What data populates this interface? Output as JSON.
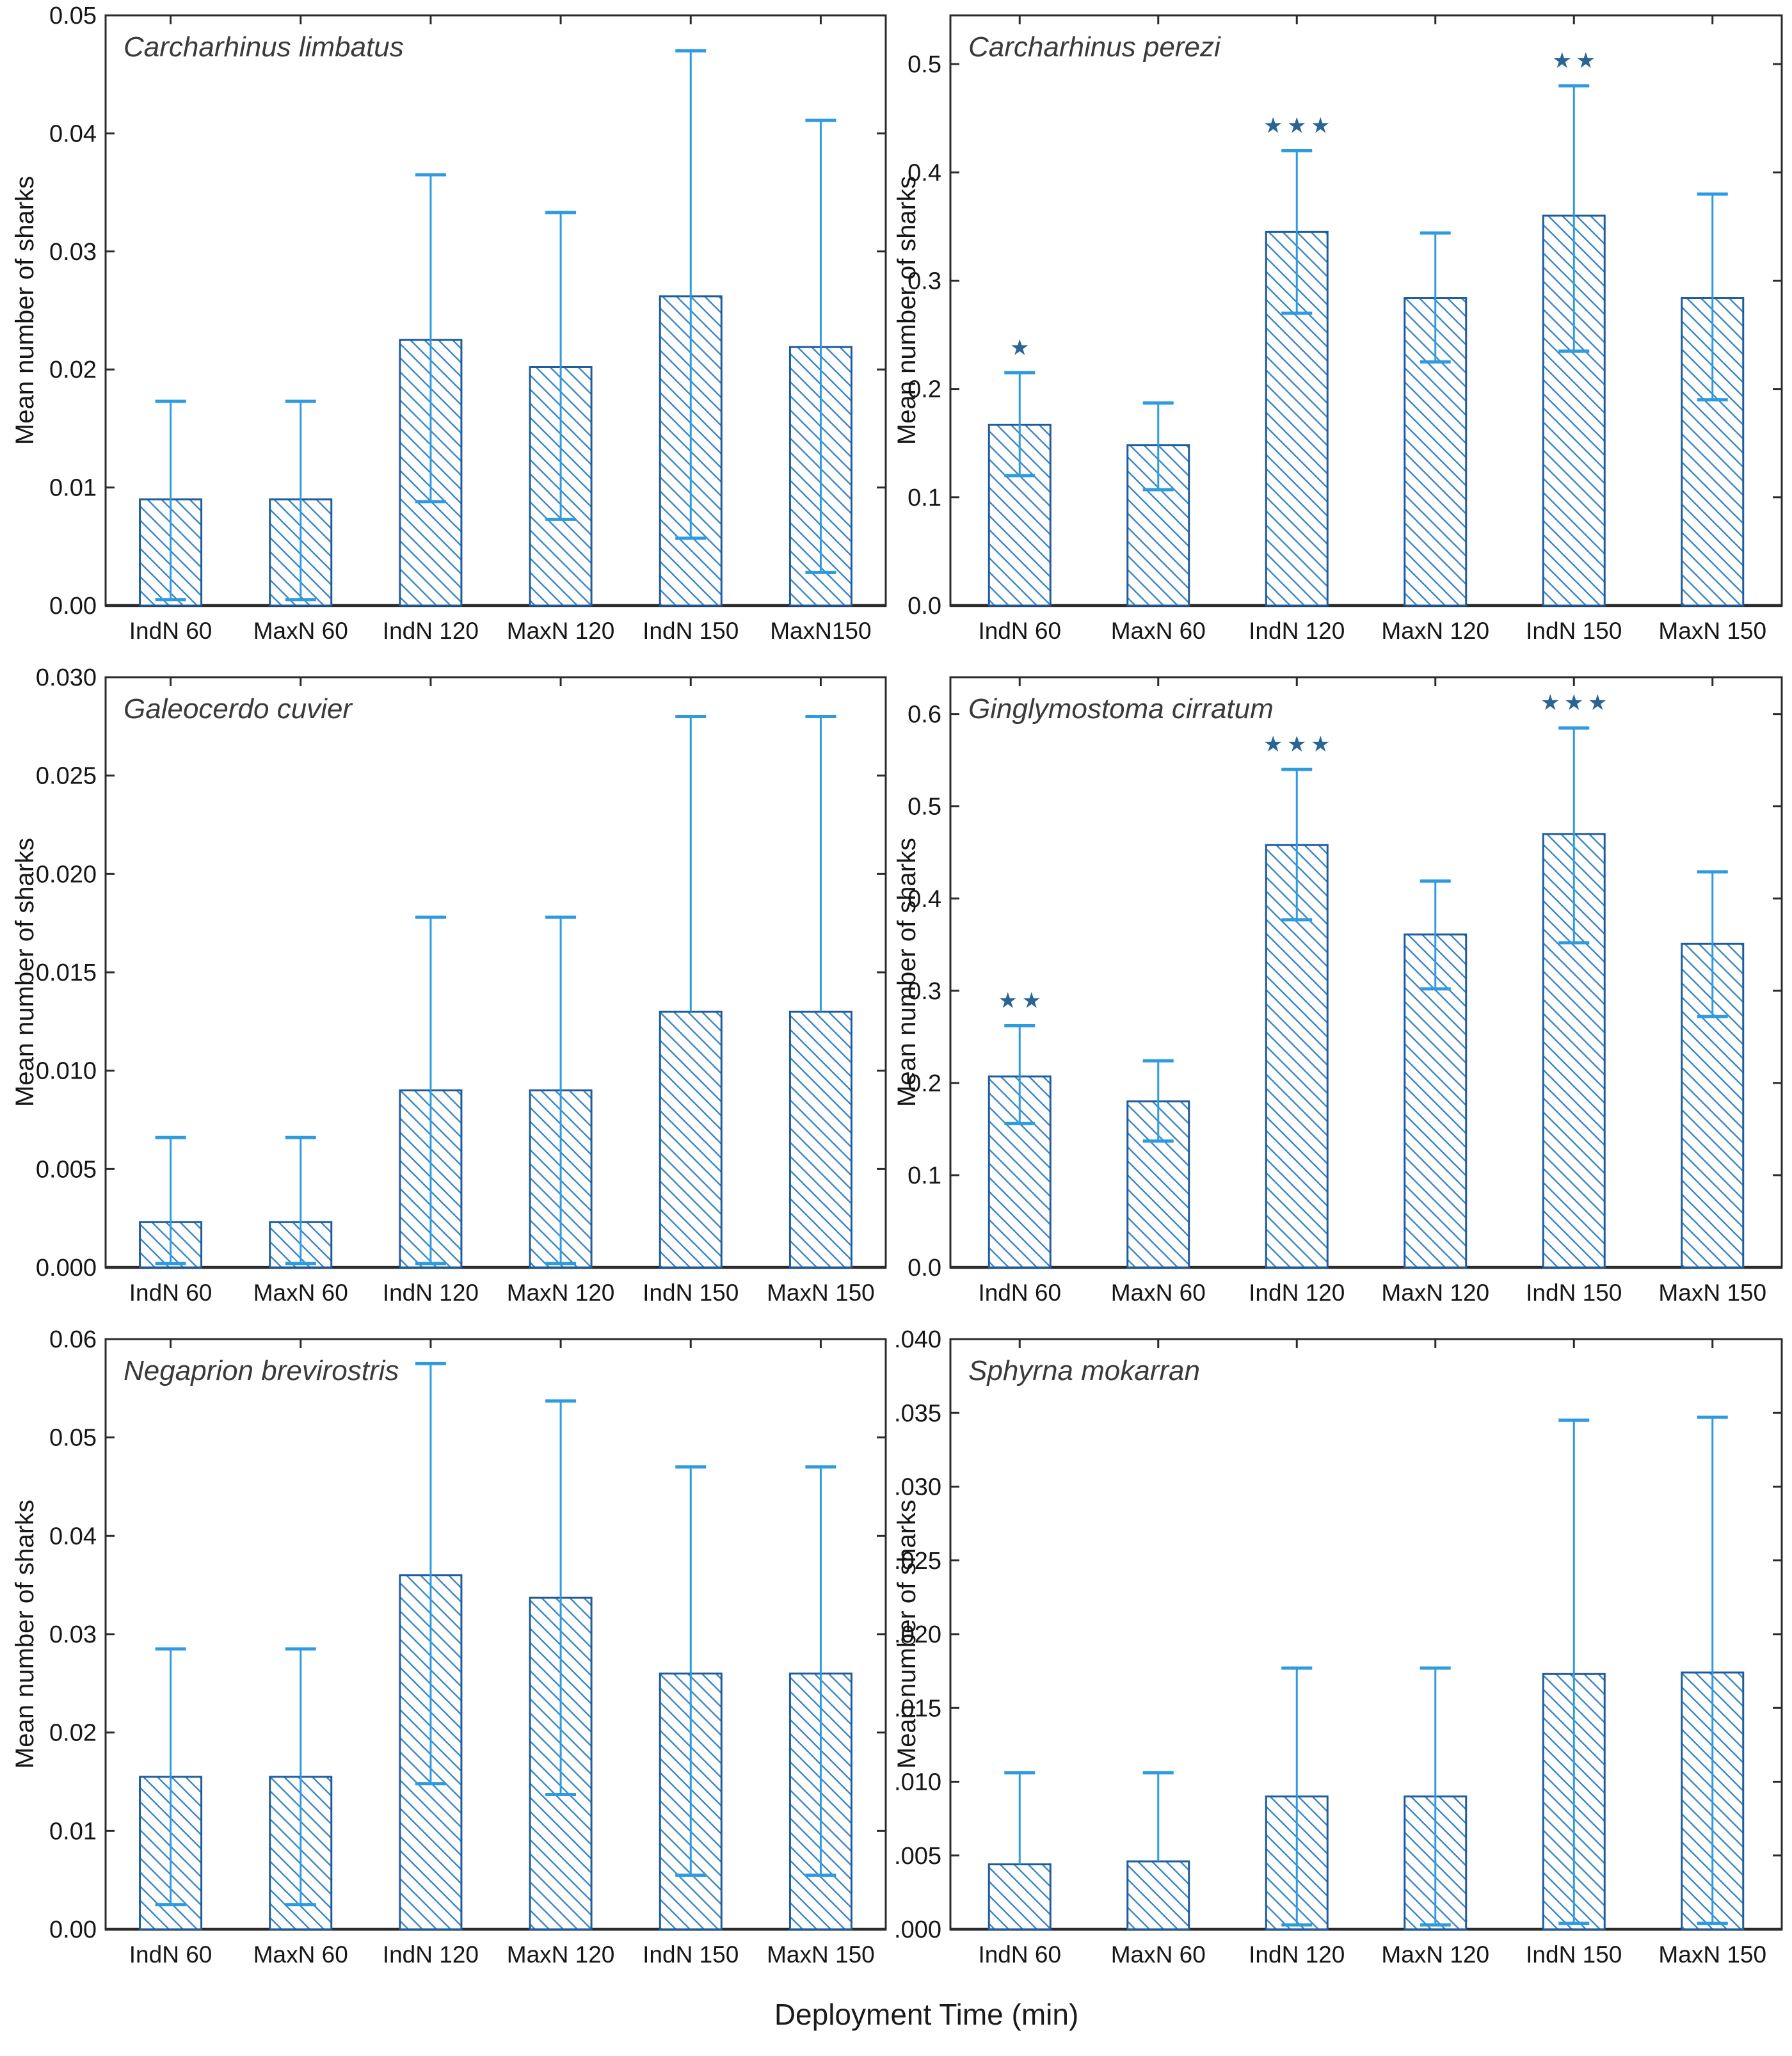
{
  "figure": {
    "xlabel": "Deployment Time (min)",
    "ylabel": "Mean number of sharks",
    "colors": {
      "axis": "#2b2b2b",
      "bar_edge": "#1f5c9b",
      "hatch": "#3f86c6",
      "error_bar": "#2e9bdf",
      "star": "#2a6496",
      "title": "#3a3a3a",
      "tick_text": "#161616"
    }
  },
  "chart_data": [
    {
      "type": "bar",
      "title": "Carcharhinus limbatus",
      "ylabel": "Mean number of sharks",
      "categories": [
        "IndN 60",
        "MaxN 60",
        "IndN 120",
        "MaxN 120",
        "IndN 150",
        "MaxN150"
      ],
      "values": [
        0.009,
        0.009,
        0.0225,
        0.0202,
        0.0262,
        0.0219
      ],
      "err_low": [
        0.0005,
        0.0005,
        0.0088,
        0.0073,
        0.0057,
        0.0028
      ],
      "err_high": [
        0.0173,
        0.0173,
        0.0365,
        0.0333,
        0.047,
        0.0411
      ],
      "stars": [
        "",
        "",
        "",
        "",
        "",
        ""
      ],
      "ylim": [
        0,
        0.05
      ],
      "yticks": [
        {
          "v": 0.0,
          "t": "0.00"
        },
        {
          "v": 0.01,
          "t": "0.01"
        },
        {
          "v": 0.02,
          "t": "0.02"
        },
        {
          "v": 0.03,
          "t": "0.03"
        },
        {
          "v": 0.04,
          "t": "0.04"
        },
        {
          "v": 0.05,
          "t": "0.05"
        }
      ]
    },
    {
      "type": "bar",
      "title": "Carcharhinus perezi",
      "ylabel": "Mean number of sharks",
      "categories": [
        "IndN 60",
        "MaxN 60",
        "IndN 120",
        "MaxN 120",
        "IndN 150",
        "MaxN 150"
      ],
      "values": [
        0.167,
        0.148,
        0.345,
        0.284,
        0.36,
        0.284
      ],
      "err_low": [
        0.12,
        0.107,
        0.27,
        0.225,
        0.235,
        0.19
      ],
      "err_high": [
        0.215,
        0.187,
        0.42,
        0.344,
        0.48,
        0.38
      ],
      "stars": [
        "*",
        "",
        "***",
        "",
        "**",
        ""
      ],
      "ylim": [
        0,
        0.545
      ],
      "yticks": [
        {
          "v": 0.0,
          "t": "0.0"
        },
        {
          "v": 0.1,
          "t": "0.1"
        },
        {
          "v": 0.2,
          "t": "0.2"
        },
        {
          "v": 0.3,
          "t": "0.3"
        },
        {
          "v": 0.4,
          "t": "0.4"
        },
        {
          "v": 0.5,
          "t": "0.5"
        }
      ]
    },
    {
      "type": "bar",
      "title": "Galeocerdo cuvier",
      "ylabel": "Mean number of sharks",
      "categories": [
        "IndN 60",
        "MaxN 60",
        "IndN 120",
        "MaxN 120",
        "IndN 150",
        "MaxN 150"
      ],
      "values": [
        0.0023,
        0.0023,
        0.009,
        0.009,
        0.013,
        0.013
      ],
      "err_low": [
        0.0002,
        0.0002,
        0.0002,
        0.0002,
        null,
        null
      ],
      "err_high": [
        0.0066,
        0.0066,
        0.0178,
        0.0178,
        0.028,
        0.028
      ],
      "stars": [
        "",
        "",
        "",
        "",
        "",
        ""
      ],
      "ylim": [
        0,
        0.03
      ],
      "yticks": [
        {
          "v": 0.0,
          "t": "0.000"
        },
        {
          "v": 0.005,
          "t": "0.005"
        },
        {
          "v": 0.01,
          "t": "0.010"
        },
        {
          "v": 0.015,
          "t": "0.015"
        },
        {
          "v": 0.02,
          "t": "0.020"
        },
        {
          "v": 0.025,
          "t": "0.025"
        },
        {
          "v": 0.03,
          "t": "0.030"
        }
      ]
    },
    {
      "type": "bar",
      "title": "Ginglymostoma cirratum",
      "ylabel": "Mean number of sharks",
      "categories": [
        "IndN 60",
        "MaxN 60",
        "IndN 120",
        "MaxN 120",
        "IndN 150",
        "MaxN 150"
      ],
      "values": [
        0.207,
        0.18,
        0.458,
        0.361,
        0.47,
        0.351
      ],
      "err_low": [
        0.156,
        0.137,
        0.377,
        0.302,
        0.352,
        0.272
      ],
      "err_high": [
        0.262,
        0.224,
        0.54,
        0.419,
        0.585,
        0.429
      ],
      "stars": [
        "**",
        "",
        "***",
        "",
        "***",
        ""
      ],
      "ylim": [
        0,
        0.64
      ],
      "yticks": [
        {
          "v": 0.0,
          "t": "0.0"
        },
        {
          "v": 0.1,
          "t": "0.1"
        },
        {
          "v": 0.2,
          "t": "0.2"
        },
        {
          "v": 0.3,
          "t": "0.3"
        },
        {
          "v": 0.4,
          "t": "0.4"
        },
        {
          "v": 0.5,
          "t": "0.5"
        },
        {
          "v": 0.6,
          "t": "0.6"
        }
      ]
    },
    {
      "type": "bar",
      "title": "Negaprion brevirostris",
      "ylabel": "Mean number of sharks",
      "categories": [
        "IndN 60",
        "MaxN 60",
        "IndN 120",
        "MaxN 120",
        "IndN 150",
        "MaxN 150"
      ],
      "values": [
        0.0155,
        0.0155,
        0.036,
        0.0337,
        0.026,
        0.026
      ],
      "err_low": [
        0.0025,
        0.0025,
        0.0148,
        0.0137,
        0.0055,
        0.0055
      ],
      "err_high": [
        0.0285,
        0.0285,
        0.0575,
        0.0537,
        0.047,
        0.047
      ],
      "stars": [
        "",
        "",
        "",
        "",
        "",
        ""
      ],
      "ylim": [
        0,
        0.06
      ],
      "yticks": [
        {
          "v": 0.0,
          "t": "0.00"
        },
        {
          "v": 0.01,
          "t": "0.01"
        },
        {
          "v": 0.02,
          "t": "0.02"
        },
        {
          "v": 0.03,
          "t": "0.03"
        },
        {
          "v": 0.04,
          "t": "0.04"
        },
        {
          "v": 0.05,
          "t": "0.05"
        },
        {
          "v": 0.06,
          "t": "0.06"
        }
      ]
    },
    {
      "type": "bar",
      "title": "Sphyrna mokarran",
      "ylabel": "Mean number of sharks",
      "categories": [
        "IndN 60",
        "MaxN 60",
        "IndN 120",
        "MaxN 120",
        "IndN 150",
        "MaxN 150"
      ],
      "values": [
        0.0044,
        0.0046,
        0.009,
        0.009,
        0.0173,
        0.0174
      ],
      "err_low": [
        null,
        null,
        0.0003,
        0.0003,
        0.0004,
        0.0004
      ],
      "err_high": [
        0.0106,
        0.0106,
        0.0177,
        0.0177,
        0.0345,
        0.0347
      ],
      "stars": [
        "",
        "",
        "",
        "",
        "",
        ""
      ],
      "ylim": [
        0,
        0.04
      ],
      "yticks": [
        {
          "v": 0.0,
          "t": "0.000"
        },
        {
          "v": 0.005,
          "t": "0.005"
        },
        {
          "v": 0.01,
          "t": "0.010"
        },
        {
          "v": 0.015,
          "t": "0.015"
        },
        {
          "v": 0.02,
          "t": "0.020"
        },
        {
          "v": 0.025,
          "t": "0.025"
        },
        {
          "v": 0.03,
          "t": "0.030"
        },
        {
          "v": 0.035,
          "t": "0.035"
        },
        {
          "v": 0.04,
          "t": "0.040"
        }
      ]
    }
  ]
}
